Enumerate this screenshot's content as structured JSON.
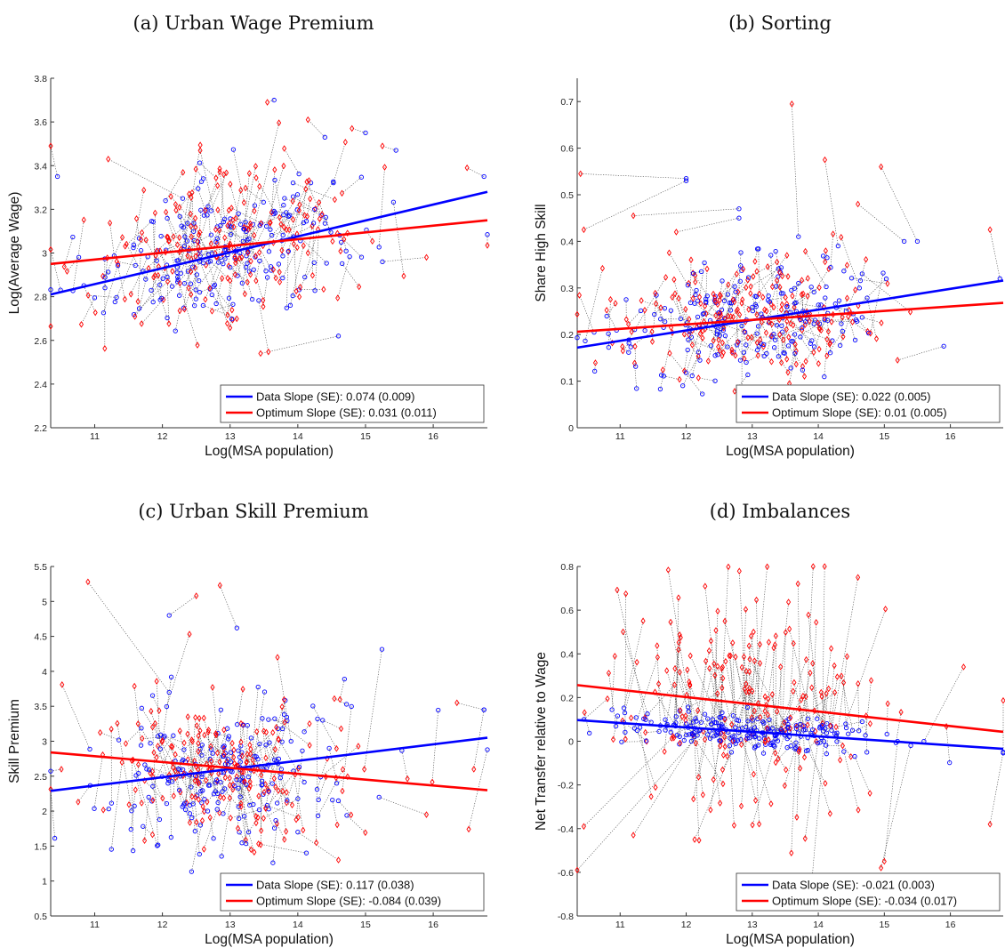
{
  "chart_data": [
    {
      "type": "scatter",
      "panel_title": "(a) Urban Wage Premium",
      "xlabel": "Log(MSA population)",
      "ylabel": "Log(Average Wage)",
      "xlim": [
        10.35,
        16.8
      ],
      "ylim": [
        2.2,
        3.8
      ],
      "xticks": [
        11,
        12,
        13,
        14,
        15,
        16
      ],
      "yticks": [
        2.2,
        2.4,
        2.6,
        2.8,
        3,
        3.2,
        3.4,
        3.6,
        3.8
      ],
      "ytick_labels": [
        "2.2",
        "2.4",
        "2.6",
        "2.8",
        "3",
        "3.2",
        "3.4",
        "3.6",
        "3.8"
      ],
      "legend_position": "bottom-right",
      "series": [
        {
          "name": "Data",
          "marker": "circle",
          "color": "#0000ff",
          "fit_line": [
            [
              10.35,
              2.81
            ],
            [
              16.8,
              3.28
            ]
          ],
          "slope_label": "Data Slope (SE): 0.074 (0.009)"
        },
        {
          "name": "Optimum",
          "marker": "diamond",
          "color": "#ff0000",
          "fit_line": [
            [
              10.35,
              2.95
            ],
            [
              16.8,
              3.15
            ]
          ],
          "slope_label": "Optimum Slope (SE): 0.031 (0.011)"
        }
      ],
      "seed": 11,
      "n_points": 220,
      "center": [
        12.9,
        3.0
      ],
      "sd_x": 0.85,
      "sd_y": 0.14,
      "move_sd": 0.16,
      "extra_pairs": [
        [
          [
            10.35,
            3.49
          ],
          [
            10.45,
            3.35
          ]
        ],
        [
          [
            11.2,
            3.43
          ],
          [
            12.3,
            3.25
          ]
        ],
        [
          [
            13.55,
            3.69
          ],
          [
            13.65,
            3.7
          ]
        ],
        [
          [
            14.15,
            3.61
          ],
          [
            14.4,
            3.53
          ]
        ],
        [
          [
            14.8,
            3.57
          ],
          [
            15.0,
            3.55
          ]
        ],
        [
          [
            15.25,
            3.49
          ],
          [
            15.45,
            3.47
          ]
        ],
        [
          [
            13.45,
            2.54
          ],
          [
            14.6,
            2.62
          ]
        ],
        [
          [
            15.9,
            2.98
          ],
          [
            15.25,
            2.96
          ]
        ],
        [
          [
            16.5,
            3.39
          ],
          [
            16.75,
            3.35
          ]
        ]
      ]
    },
    {
      "type": "scatter",
      "panel_title": "(b) Sorting",
      "xlabel": "Log(MSA population)",
      "ylabel": "Share High Skill",
      "xlim": [
        10.35,
        16.8
      ],
      "ylim": [
        0,
        0.75
      ],
      "xticks": [
        11,
        12,
        13,
        14,
        15,
        16
      ],
      "yticks": [
        0,
        0.1,
        0.2,
        0.3,
        0.4,
        0.5,
        0.6,
        0.7
      ],
      "ytick_labels": [
        "0",
        "0.1",
        "0.2",
        "0.3",
        "0.4",
        "0.5",
        "0.6",
        "0.7"
      ],
      "legend_position": "bottom-right",
      "series": [
        {
          "name": "Data",
          "marker": "circle",
          "color": "#0000ff",
          "fit_line": [
            [
              10.35,
              0.172
            ],
            [
              16.8,
              0.316
            ]
          ],
          "slope_label": "Data Slope (SE): 0.022 (0.005)"
        },
        {
          "name": "Optimum",
          "marker": "diamond",
          "color": "#ff0000",
          "fit_line": [
            [
              10.35,
              0.206
            ],
            [
              16.8,
              0.268
            ]
          ],
          "slope_label": "Optimum Slope (SE): 0.01 (0.005)"
        }
      ],
      "seed": 23,
      "n_points": 220,
      "center": [
        12.9,
        0.215
      ],
      "sd_x": 0.85,
      "sd_y": 0.055,
      "move_sd": 0.05,
      "extra_pairs": [
        [
          [
            10.4,
            0.545
          ],
          [
            12.0,
            0.535
          ]
        ],
        [
          [
            10.45,
            0.425
          ],
          [
            12.0,
            0.53
          ]
        ],
        [
          [
            11.2,
            0.455
          ],
          [
            12.8,
            0.47
          ]
        ],
        [
          [
            13.6,
            0.695
          ],
          [
            13.7,
            0.41
          ]
        ],
        [
          [
            14.1,
            0.575
          ],
          [
            14.3,
            0.39
          ]
        ],
        [
          [
            14.95,
            0.56
          ],
          [
            15.5,
            0.4
          ]
        ],
        [
          [
            14.6,
            0.48
          ],
          [
            15.3,
            0.4
          ]
        ],
        [
          [
            16.6,
            0.425
          ],
          [
            16.75,
            0.32
          ]
        ],
        [
          [
            15.2,
            0.145
          ],
          [
            15.9,
            0.175
          ]
        ],
        [
          [
            11.85,
            0.42
          ],
          [
            12.8,
            0.45
          ]
        ]
      ]
    },
    {
      "type": "scatter",
      "panel_title": "(c) Urban Skill Premium",
      "xlabel": "Log(MSA population)",
      "ylabel": "Skill Premium",
      "xlim": [
        10.35,
        16.8
      ],
      "ylim": [
        0.5,
        5.5
      ],
      "xticks": [
        11,
        12,
        13,
        14,
        15,
        16
      ],
      "yticks": [
        0.5,
        1,
        1.5,
        2,
        2.5,
        3,
        3.5,
        4,
        4.5,
        5,
        5.5
      ],
      "ytick_labels": [
        "0.5",
        "1",
        "1.5",
        "2",
        "2.5",
        "3",
        "3.5",
        "4",
        "4.5",
        "5",
        "5.5"
      ],
      "legend_position": "bottom-right",
      "series": [
        {
          "name": "Data",
          "marker": "circle",
          "color": "#0000ff",
          "fit_line": [
            [
              10.35,
              2.29
            ],
            [
              16.8,
              3.05
            ]
          ],
          "slope_label": "Data Slope (SE): 0.117 (0.038)"
        },
        {
          "name": "Optimum",
          "marker": "diamond",
          "color": "#ff0000",
          "fit_line": [
            [
              10.35,
              2.84
            ],
            [
              16.8,
              2.3
            ]
          ],
          "slope_label": "Optimum Slope (SE): -0.084 (0.039)"
        }
      ],
      "seed": 37,
      "n_points": 220,
      "center": [
        12.9,
        2.55
      ],
      "sd_x": 0.85,
      "sd_y": 0.5,
      "move_sd": 0.45,
      "extra_pairs": [
        [
          [
            10.9,
            5.28
          ],
          [
            12.1,
            3.7
          ]
        ],
        [
          [
            12.5,
            5.08
          ],
          [
            12.1,
            4.8
          ]
        ],
        [
          [
            12.85,
            5.23
          ],
          [
            13.1,
            4.62
          ]
        ],
        [
          [
            13.7,
            4.2
          ],
          [
            13.9,
            3.0
          ]
        ],
        [
          [
            14.6,
            1.3
          ],
          [
            14.0,
            1.7
          ]
        ],
        [
          [
            16.35,
            3.55
          ],
          [
            16.75,
            3.45
          ]
        ],
        [
          [
            16.6,
            2.6
          ],
          [
            16.75,
            3.45
          ]
        ],
        [
          [
            15.9,
            1.95
          ],
          [
            15.2,
            2.2
          ]
        ]
      ]
    },
    {
      "type": "scatter",
      "panel_title": "(d) Imbalances",
      "xlabel": "Log(MSA population)",
      "ylabel": "Net Transfer relative to Wage",
      "xlim": [
        10.35,
        16.8
      ],
      "ylim": [
        -0.8,
        0.8
      ],
      "xticks": [
        11,
        12,
        13,
        14,
        15,
        16
      ],
      "yticks": [
        -0.8,
        -0.6,
        -0.4,
        -0.2,
        0,
        0.2,
        0.4,
        0.6,
        0.8
      ],
      "ytick_labels": [
        "-0.8",
        "-0.6",
        "-0.4",
        "-0.2",
        "0",
        "0.2",
        "0.4",
        "0.6",
        "0.8"
      ],
      "legend_position": "bottom-right",
      "series": [
        {
          "name": "Data",
          "marker": "circle",
          "color": "#0000ff",
          "fit_line": [
            [
              10.35,
              0.097
            ],
            [
              16.8,
              -0.035
            ]
          ],
          "slope_label": "Data Slope (SE): -0.021 (0.003)"
        },
        {
          "name": "Optimum",
          "marker": "diamond",
          "color": "#ff0000",
          "fit_line": [
            [
              10.35,
              0.257
            ],
            [
              16.8,
              0.043
            ]
          ],
          "slope_label": "Optimum Slope (SE): -0.034 (0.017)"
        }
      ],
      "seed": 53,
      "n_points": 220,
      "center": [
        12.9,
        0.06
      ],
      "sd_x": 0.85,
      "sd_y": 0.04,
      "move_sd": 0.28,
      "extra_pairs": [
        [
          [
            10.35,
            -0.59
          ],
          [
            12.4,
            0.1
          ]
        ],
        [
          [
            10.45,
            -0.39
          ],
          [
            12.0,
            0.08
          ]
        ],
        [
          [
            14.6,
            0.75
          ],
          [
            14.2,
            0.05
          ]
        ],
        [
          [
            14.95,
            -0.58
          ],
          [
            15.4,
            -0.02
          ]
        ],
        [
          [
            16.6,
            -0.38
          ],
          [
            16.8,
            -0.05
          ]
        ],
        [
          [
            16.2,
            0.34
          ],
          [
            15.6,
            0.0
          ]
        ],
        [
          [
            11.2,
            -0.43
          ],
          [
            12.2,
            0.05
          ]
        ],
        [
          [
            15.0,
            -0.55
          ],
          [
            15.2,
            0.0
          ]
        ]
      ]
    }
  ]
}
